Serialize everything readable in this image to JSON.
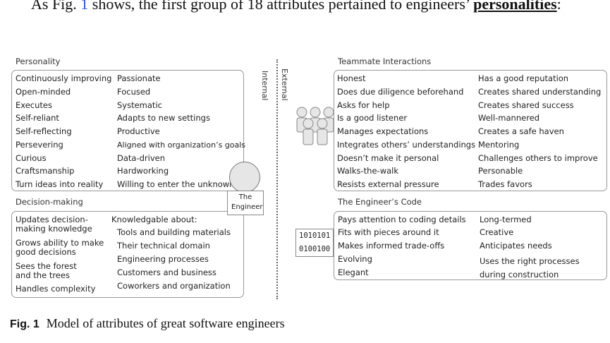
{
  "intro": {
    "before": "As Fig.",
    "ref": "1",
    "middle": "shows, the first group of 18 attributes pertained to engineers’",
    "bold": "personalities",
    "after": ":"
  },
  "labels": {
    "internal": "Internal",
    "external": "External",
    "engineer": "The Engineer",
    "binary_1": "1010101",
    "binary_2": "0100100"
  },
  "personality": {
    "title": "Personality",
    "col1": [
      "Continuously improving",
      "Open-minded",
      "Executes",
      "Self-reliant",
      "Self-reflecting",
      "Persevering",
      "Curious",
      "Craftsmanship",
      "Turn ideas into reality"
    ],
    "col2": [
      "Passionate",
      "Focused",
      "Systematic",
      "Adapts to new settings",
      "Productive",
      "Aligned with organization’s goals",
      "Data-driven",
      "Hardworking",
      "Willing to enter the unknown"
    ]
  },
  "decision_making": {
    "title": "Decision-making",
    "col1": [
      "Updates decision-making knowledge",
      "Grows ability to make good decisions",
      "Sees the forest and the trees",
      "Handles complexity"
    ],
    "knowledge_title": "Knowledgable about:",
    "col2": [
      "Tools and building materials",
      "Their technical domain",
      "Engineering processes",
      "Customers and business",
      "Coworkers and organization"
    ]
  },
  "teammate": {
    "title": "Teammate Interactions",
    "col1": [
      "Honest",
      "Does due diligence beforehand",
      "Asks for help",
      "Is a good listener",
      "Manages expectations",
      "Integrates others’ understandings",
      "Doesn’t make it personal",
      "Walks-the-walk",
      "Resists external pressure"
    ],
    "col2": [
      "Has a good reputation",
      "Creates shared understanding",
      "Creates shared success",
      "Well-mannered",
      "Creates a safe haven",
      "Mentoring",
      "Challenges others to improve",
      "Personable",
      "Trades favors"
    ]
  },
  "code": {
    "title": "The Engineer’s Code",
    "col1": [
      "Pays attention to coding details",
      "Fits with pieces around it",
      "Makes informed trade-offs",
      "Evolving",
      "Elegant"
    ],
    "col2": [
      "Long-termed",
      "Creative",
      "Anticipates needs",
      "Uses the right processes during construction"
    ]
  },
  "caption": {
    "label": "Fig. 1",
    "text": "Model of attributes of great software engineers"
  }
}
